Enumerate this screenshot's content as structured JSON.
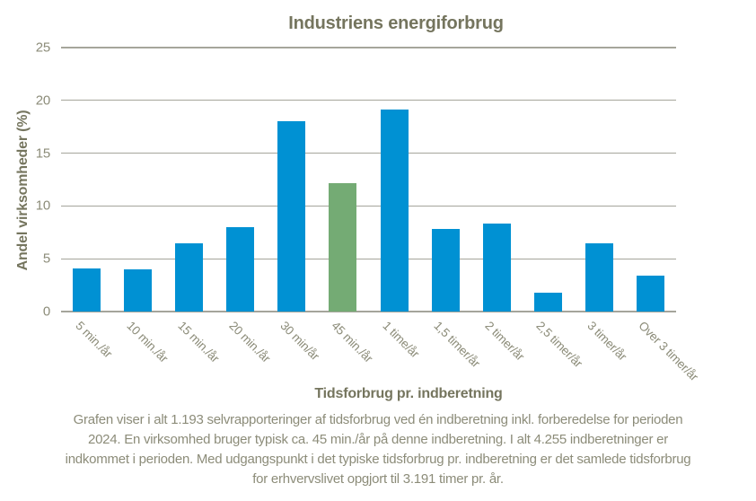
{
  "colors": {
    "bar_blue": "#0091D3",
    "bar_green": "#74AB74",
    "gridline_gray": "#A5A59B",
    "title_olive": "#75755E",
    "tick_olive": "#8C8C79"
  },
  "chart_data": {
    "type": "bar",
    "title": "Industriens energiforbrug",
    "xlabel": "Tidsforbrug pr. indberetning",
    "ylabel": "Andel virksomheder  (%)",
    "categories": [
      "5 min./år",
      "10 min./år",
      "15 min./år",
      "20 min./år",
      "30 min/år",
      "45 min./år",
      "1 time/år",
      "1,5 timer/år",
      "2 timer/år",
      "2,5 timer/år",
      "3 timer/år",
      "Over 3 timer/år"
    ],
    "values": [
      4.1,
      4.0,
      6.5,
      8.0,
      18.0,
      12.2,
      19.1,
      7.8,
      8.3,
      1.8,
      6.5,
      3.4
    ],
    "ylim": [
      0,
      25
    ],
    "yticks": [
      0,
      5,
      10,
      15,
      20,
      25
    ],
    "grid": true,
    "legend": "none",
    "bar_color": "#0091D3",
    "highlight_index": 5,
    "highlight_color": "#74AB74"
  },
  "caption": {
    "lines": [
      "Grafen viser i alt 1.193 selvrapporteringer af tidsforbrug ved én indberetning inkl. forberedelse for perioden",
      "2024. En virksomhed bruger typisk ca. 45 min./år på denne indberetning. I alt 4.255 indberetninger er",
      "indkommet i perioden. Med udgangspunkt i det typiske tidsforbrug pr. indberetning er det samlede tidsforbrug",
      "for erhvervslivet opgjort til 3.191 timer pr. år."
    ]
  }
}
